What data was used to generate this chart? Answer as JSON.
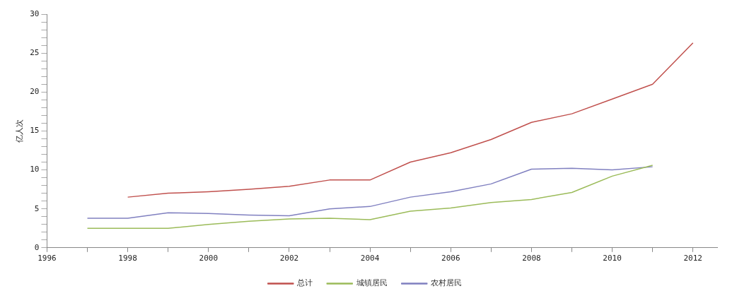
{
  "chart_data": {
    "type": "line",
    "ylabel": "亿人次",
    "legend": "bottom",
    "grid": false,
    "marker": "none",
    "line_style": "solid",
    "x": [
      1997,
      1998,
      1999,
      2000,
      2001,
      2002,
      2003,
      2004,
      2005,
      2006,
      2007,
      2008,
      2009,
      2010,
      2011,
      2012
    ],
    "xlim": [
      1996,
      2012.6
    ],
    "xticks": [
      1996,
      {
        "value": 1997,
        "label": null
      },
      1998,
      {
        "value": 1999,
        "label": null
      },
      2000,
      {
        "value": 2001,
        "label": null
      },
      2002,
      {
        "value": 2003,
        "label": null
      },
      2004,
      {
        "value": 2005,
        "label": null
      },
      2006,
      {
        "value": 2007,
        "label": null
      },
      2008,
      {
        "value": 2009,
        "label": null
      },
      2010,
      {
        "value": 2011,
        "label": null
      },
      2012
    ],
    "ylim": [
      0,
      30
    ],
    "yticks": [
      0,
      {
        "value": 1,
        "label": null
      },
      {
        "value": 2,
        "label": null
      },
      {
        "value": 3,
        "label": null
      },
      {
        "value": 4,
        "label": null
      },
      5,
      {
        "value": 6,
        "label": null
      },
      {
        "value": 7,
        "label": null
      },
      {
        "value": 8,
        "label": null
      },
      {
        "value": 9,
        "label": null
      },
      10,
      {
        "value": 11,
        "label": null
      },
      {
        "value": 12,
        "label": null
      },
      {
        "value": 13,
        "label": null
      },
      {
        "value": 14,
        "label": null
      },
      15,
      {
        "value": 16,
        "label": null
      },
      {
        "value": 17,
        "label": null
      },
      {
        "value": 18,
        "label": null
      },
      {
        "value": 19,
        "label": null
      },
      20,
      {
        "value": 21,
        "label": null
      },
      {
        "value": 22,
        "label": null
      },
      {
        "value": 23,
        "label": null
      },
      {
        "value": 24,
        "label": null
      },
      25,
      {
        "value": 26,
        "label": null
      },
      {
        "value": 27,
        "label": null
      },
      {
        "value": 28,
        "label": null
      },
      {
        "value": 29,
        "label": null
      },
      30
    ],
    "series": [
      {
        "name": "总计",
        "color": "#c0504d",
        "values": [
          null,
          6.5,
          7.0,
          7.2,
          7.5,
          7.9,
          8.7,
          8.7,
          11.0,
          12.2,
          13.9,
          16.1,
          17.2,
          19.1,
          21.0,
          26.3
        ]
      },
      {
        "name": "城镇居民",
        "color": "#9bbb59",
        "values": [
          2.5,
          2.5,
          2.5,
          3.0,
          3.4,
          3.7,
          3.8,
          3.6,
          4.7,
          5.1,
          5.8,
          6.2,
          7.1,
          9.2,
          10.6,
          null
        ]
      },
      {
        "name": "农村居民",
        "color": "#8080c0",
        "values": [
          3.8,
          3.8,
          4.5,
          4.4,
          4.2,
          4.1,
          5.0,
          5.3,
          6.5,
          7.2,
          8.2,
          10.1,
          10.2,
          10.0,
          10.4,
          null
        ]
      }
    ]
  }
}
